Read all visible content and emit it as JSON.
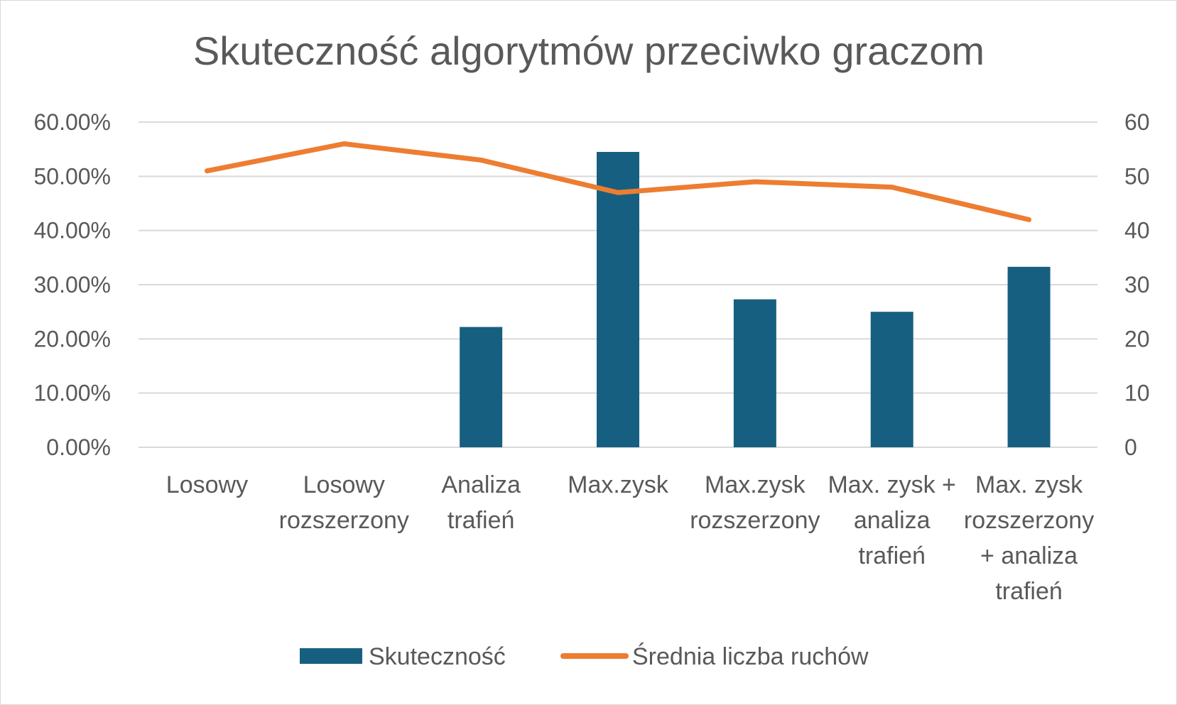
{
  "chart_data": {
    "type": "bar",
    "title": "Skuteczność algorytmów przeciwko graczom",
    "xlabel": "",
    "ylabel": "",
    "categories": [
      "Losowy",
      "Losowy rozszerzony",
      "Analiza trafień",
      "Max.zysk",
      "Max.zysk rozszerzony",
      "Max. zysk + analiza trafień",
      "Max. zysk rozszerzony + analiza trafień"
    ],
    "category_lines": [
      [
        "Losowy"
      ],
      [
        "Losowy",
        "rozszerzony"
      ],
      [
        "Analiza",
        "trafień"
      ],
      [
        "Max.zysk"
      ],
      [
        "Max.zysk",
        "rozszerzony"
      ],
      [
        "Max. zysk +",
        "analiza",
        "trafień"
      ],
      [
        "Max. zysk",
        "rozszerzony",
        "+ analiza",
        "trafień"
      ]
    ],
    "series": [
      {
        "name": "Skuteczność",
        "type": "bar",
        "axis": "left",
        "color": "#175F80",
        "values": [
          0,
          0,
          0.222,
          0.545,
          0.273,
          0.25,
          0.333
        ]
      },
      {
        "name": "Średnia liczba ruchów",
        "type": "line",
        "axis": "right",
        "color": "#ED7D31",
        "values": [
          51,
          56,
          53,
          47,
          49,
          48,
          42
        ]
      }
    ],
    "y_left": {
      "lim": [
        0,
        0.6
      ],
      "ticks": [
        0,
        0.1,
        0.2,
        0.3,
        0.4,
        0.5,
        0.6
      ],
      "tick_labels": [
        "0.00%",
        "10.00%",
        "20.00%",
        "30.00%",
        "40.00%",
        "50.00%",
        "60.00%"
      ]
    },
    "y_right": {
      "lim": [
        0,
        60
      ],
      "ticks": [
        0,
        10,
        20,
        30,
        40,
        50,
        60
      ],
      "tick_labels": [
        "0",
        "10",
        "20",
        "30",
        "40",
        "50",
        "60"
      ]
    },
    "grid": true,
    "legend": "bottom"
  }
}
